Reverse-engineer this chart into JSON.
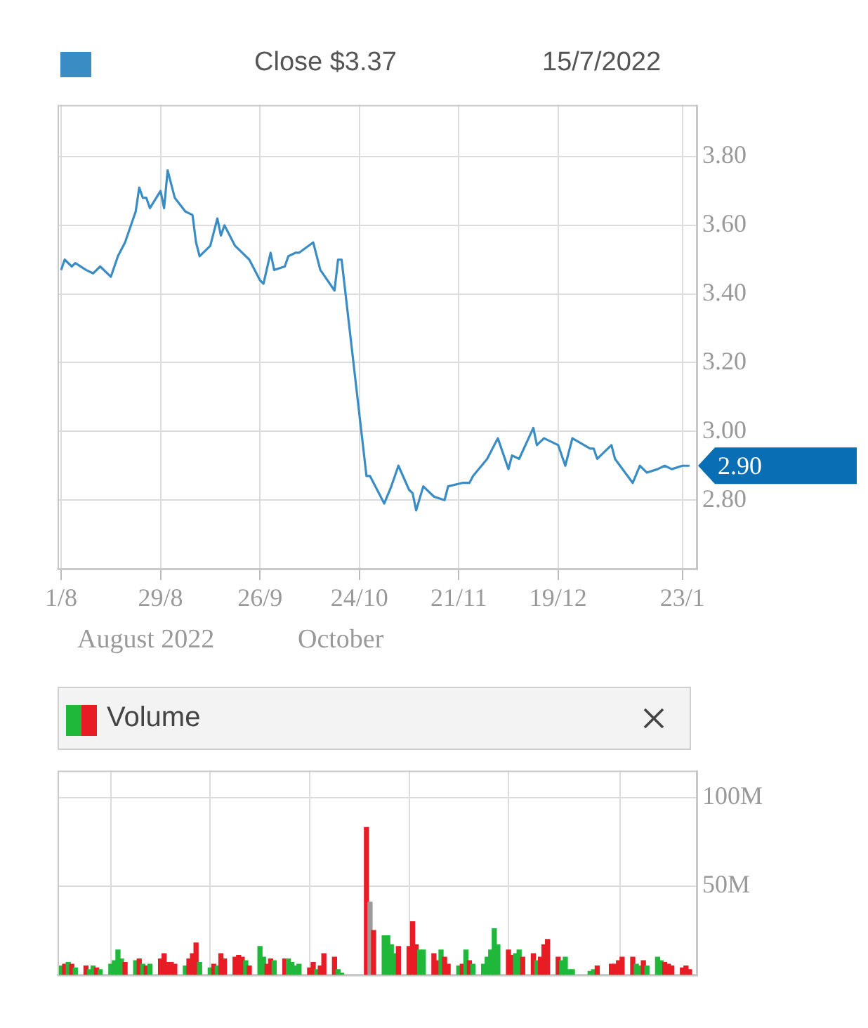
{
  "chart_data": [
    {
      "type": "line",
      "title": "Close $3.37",
      "subtitle": "15/7/2022",
      "color": "#3a8cc4",
      "marker": "none",
      "grid": true,
      "annotations": [
        "August 2022",
        "October"
      ],
      "xlim": [
        "2022-07-31",
        "2023-01-27"
      ],
      "xticks": [
        {
          "value": "2022-08-01",
          "label": "1/8"
        },
        {
          "value": "2022-08-29",
          "label": "29/8"
        },
        {
          "value": "2022-09-26",
          "label": "26/9"
        },
        {
          "value": "2022-10-24",
          "label": "24/10"
        },
        {
          "value": "2022-11-21",
          "label": "21/11"
        },
        {
          "value": "2022-12-19",
          "label": "19/12"
        },
        {
          "value": "2023-01-23",
          "label": "23/1"
        }
      ],
      "ylim": [
        2.6,
        3.95
      ],
      "yticks": [
        {
          "value": 2.8,
          "label": "2.80"
        },
        {
          "value": 3.0,
          "label": "3.00"
        },
        {
          "value": 3.2,
          "label": "3.20"
        },
        {
          "value": 3.4,
          "label": "3.40"
        },
        {
          "value": 3.6,
          "label": "3.60"
        },
        {
          "value": 3.8,
          "label": "3.80"
        }
      ],
      "x": [
        "2022-08-01",
        "2022-08-02",
        "2022-08-04",
        "2022-08-05",
        "2022-08-08",
        "2022-08-10",
        "2022-08-12",
        "2022-08-15",
        "2022-08-17",
        "2022-08-19",
        "2022-08-22",
        "2022-08-23",
        "2022-08-24",
        "2022-08-25",
        "2022-08-26",
        "2022-08-29",
        "2022-08-30",
        "2022-08-31",
        "2022-09-01",
        "2022-09-02",
        "2022-09-05",
        "2022-09-07",
        "2022-09-08",
        "2022-09-09",
        "2022-09-12",
        "2022-09-14",
        "2022-09-15",
        "2022-09-16",
        "2022-09-19",
        "2022-09-21",
        "2022-09-23",
        "2022-09-26",
        "2022-09-27",
        "2022-09-29",
        "2022-09-30",
        "2022-10-03",
        "2022-10-04",
        "2022-10-06",
        "2022-10-07",
        "2022-10-11",
        "2022-10-13",
        "2022-10-17",
        "2022-10-18",
        "2022-10-19",
        "2022-10-26",
        "2022-10-27",
        "2022-10-31",
        "2022-11-02",
        "2022-11-04",
        "2022-11-07",
        "2022-11-08",
        "2022-11-09",
        "2022-11-11",
        "2022-11-14",
        "2022-11-17",
        "2022-11-18",
        "2022-11-22",
        "2022-11-24",
        "2022-11-25",
        "2022-11-29",
        "2022-12-02",
        "2022-12-05",
        "2022-12-06",
        "2022-12-08",
        "2022-12-12",
        "2022-12-13",
        "2022-12-15",
        "2022-12-19",
        "2022-12-21",
        "2022-12-23",
        "2022-12-28",
        "2022-12-29",
        "2022-12-30",
        "2023-01-03",
        "2023-01-04",
        "2023-01-09",
        "2023-01-11",
        "2023-01-13",
        "2023-01-16",
        "2023-01-18",
        "2023-01-20",
        "2023-01-23",
        "2023-01-25"
      ],
      "values": [
        3.47,
        3.5,
        3.48,
        3.49,
        3.47,
        3.46,
        3.48,
        3.45,
        3.51,
        3.55,
        3.64,
        3.71,
        3.68,
        3.68,
        3.65,
        3.7,
        3.65,
        3.76,
        3.72,
        3.68,
        3.64,
        3.63,
        3.55,
        3.51,
        3.54,
        3.62,
        3.57,
        3.6,
        3.54,
        3.52,
        3.5,
        3.44,
        3.43,
        3.52,
        3.47,
        3.48,
        3.51,
        3.52,
        3.52,
        3.55,
        3.47,
        3.41,
        3.5,
        3.5,
        2.87,
        2.87,
        2.79,
        2.84,
        2.9,
        2.83,
        2.82,
        2.77,
        2.84,
        2.81,
        2.8,
        2.84,
        2.85,
        2.85,
        2.87,
        2.92,
        2.98,
        2.89,
        2.93,
        2.92,
        3.01,
        2.96,
        2.98,
        2.96,
        2.9,
        2.98,
        2.95,
        2.95,
        2.92,
        2.96,
        2.92,
        2.85,
        2.9,
        2.88,
        2.89,
        2.9,
        2.89,
        2.9,
        2.9
      ],
      "value_labels": [
        null,
        null,
        null,
        null,
        null,
        null,
        null,
        null,
        null,
        null,
        null,
        null,
        null,
        null,
        null,
        null,
        null,
        null,
        null,
        null,
        null,
        null,
        null,
        null,
        null,
        null,
        null,
        null,
        null,
        null,
        null,
        null,
        null,
        null,
        null,
        null,
        null,
        null,
        null,
        null,
        null,
        null,
        null,
        null,
        null,
        null,
        null,
        null,
        null,
        null,
        null,
        null,
        null,
        null,
        null,
        null,
        null,
        null,
        null,
        null,
        null,
        null,
        null,
        null,
        null,
        null,
        null,
        null,
        null,
        null,
        null,
        null,
        null,
        null,
        null,
        null,
        null,
        null,
        null,
        null,
        null,
        null,
        "2.90"
      ]
    },
    {
      "type": "bar",
      "title": "Volume",
      "grid": true,
      "tick_labels": "y",
      "xlim": [
        "2022-07-31",
        "2023-01-27"
      ],
      "xticks": [
        {
          "value": "2022-08-01",
          "label": null
        },
        {
          "value": "2022-08-29",
          "label": null
        },
        {
          "value": "2022-09-26",
          "label": null
        },
        {
          "value": "2022-10-24",
          "label": null
        },
        {
          "value": "2022-11-21",
          "label": null
        },
        {
          "value": "2022-12-19",
          "label": null
        },
        {
          "value": "2023-01-23",
          "label": null
        }
      ],
      "ylim": [
        0,
        115
      ],
      "yticks": [
        {
          "value": 50,
          "label": "50M"
        },
        {
          "value": 100,
          "label": "100M"
        }
      ],
      "x": [
        "2022-08-01",
        "2022-08-02",
        "2022-08-03",
        "2022-08-04",
        "2022-08-05",
        "2022-08-08",
        "2022-08-09",
        "2022-08-10",
        "2022-08-11",
        "2022-08-12",
        "2022-08-15",
        "2022-08-16",
        "2022-08-17",
        "2022-08-18",
        "2022-08-19",
        "2022-08-22",
        "2022-08-23",
        "2022-08-24",
        "2022-08-25",
        "2022-08-26",
        "2022-08-29",
        "2022-08-30",
        "2022-08-31",
        "2022-09-01",
        "2022-09-02",
        "2022-09-05",
        "2022-09-06",
        "2022-09-07",
        "2022-09-08",
        "2022-09-09",
        "2022-09-12",
        "2022-09-13",
        "2022-09-14",
        "2022-09-15",
        "2022-09-16",
        "2022-09-19",
        "2022-09-20",
        "2022-09-21",
        "2022-09-22",
        "2022-09-23",
        "2022-09-26",
        "2022-09-27",
        "2022-09-28",
        "2022-09-29",
        "2022-09-30",
        "2022-10-03",
        "2022-10-04",
        "2022-10-05",
        "2022-10-06",
        "2022-10-07",
        "2022-10-10",
        "2022-10-11",
        "2022-10-12",
        "2022-10-13",
        "2022-10-14",
        "2022-10-17",
        "2022-10-18",
        "2022-10-19",
        "2022-10-26",
        "2022-10-27",
        "2022-10-28",
        "2022-10-31",
        "2022-11-01",
        "2022-11-02",
        "2022-11-03",
        "2022-11-04",
        "2022-11-07",
        "2022-11-08",
        "2022-11-09",
        "2022-11-10",
        "2022-11-11",
        "2022-11-14",
        "2022-11-15",
        "2022-11-16",
        "2022-11-17",
        "2022-11-18",
        "2022-11-21",
        "2022-11-22",
        "2022-11-23",
        "2022-11-24",
        "2022-11-25",
        "2022-11-28",
        "2022-11-29",
        "2022-11-30",
        "2022-12-01",
        "2022-12-02",
        "2022-12-05",
        "2022-12-06",
        "2022-12-07",
        "2022-12-08",
        "2022-12-09",
        "2022-12-12",
        "2022-12-13",
        "2022-12-14",
        "2022-12-15",
        "2022-12-16",
        "2022-12-19",
        "2022-12-20",
        "2022-12-21",
        "2022-12-22",
        "2022-12-23",
        "2022-12-28",
        "2022-12-29",
        "2022-12-30",
        "2023-01-03",
        "2023-01-04",
        "2023-01-05",
        "2023-01-06",
        "2023-01-09",
        "2023-01-10",
        "2023-01-11",
        "2023-01-12",
        "2023-01-13",
        "2023-01-16",
        "2023-01-17",
        "2023-01-18",
        "2023-01-19",
        "2023-01-20",
        "2023-01-23",
        "2023-01-24",
        "2023-01-25"
      ],
      "values": [
        5,
        6,
        7,
        6,
        4,
        5,
        3,
        5,
        4,
        3,
        6,
        8,
        14,
        9,
        7,
        8,
        9,
        6,
        5,
        6,
        9,
        12,
        7,
        7,
        6,
        5,
        9,
        12,
        18,
        7,
        4,
        6,
        5,
        12,
        9,
        10,
        11,
        10,
        8,
        5,
        16,
        10,
        6,
        9,
        8,
        9,
        9,
        7,
        5,
        6,
        4,
        7,
        3,
        5,
        12,
        10,
        3,
        1,
        83,
        41,
        25,
        22,
        22,
        17,
        12,
        16,
        16,
        30,
        17,
        14,
        14,
        12,
        8,
        14,
        10,
        6,
        5,
        6,
        14,
        8,
        6,
        6,
        10,
        14,
        26,
        17,
        14,
        11,
        12,
        14,
        10,
        12,
        8,
        10,
        17,
        20,
        10,
        8,
        10,
        3,
        3,
        2,
        3,
        5,
        6,
        6,
        8,
        10,
        10,
        6,
        5,
        8,
        5,
        10,
        8,
        7,
        6,
        5,
        4,
        5,
        3
      ],
      "colors": [
        "#1fb83a",
        "#e81c24",
        "#1fb83a",
        "#e81c24",
        "#1fb83a",
        "#e81c24",
        "#1fb83a",
        "#1fb83a",
        "#e81c24",
        "#1fb83a",
        "#1fb83a",
        "#1fb83a",
        "#1fb83a",
        "#1fb83a",
        "#e81c24",
        "#1fb83a",
        "#e81c24",
        "#1fb83a",
        "#e81c24",
        "#1fb83a",
        "#e81c24",
        "#e81c24",
        "#e81c24",
        "#e81c24",
        "#e81c24",
        "#1fb83a",
        "#e81c24",
        "#e81c24",
        "#e81c24",
        "#1fb83a",
        "#1fb83a",
        "#e81c24",
        "#1fb83a",
        "#e81c24",
        "#e81c24",
        "#e81c24",
        "#e81c24",
        "#e81c24",
        "#1fb83a",
        "#e81c24",
        "#1fb83a",
        "#1fb83a",
        "#e81c24",
        "#e81c24",
        "#1fb83a",
        "#e81c24",
        "#1fb83a",
        "#1fb83a",
        "#1fb83a",
        "#1fb83a",
        "#e81c24",
        "#e81c24",
        "#1fb83a",
        "#e81c24",
        "#e81c24",
        "#e81c24",
        "#1fb83a",
        "#1fb83a",
        "#e81c24",
        "#9a9a9a",
        "#e81c24",
        "#1fb83a",
        "#1fb83a",
        "#1fb83a",
        "#1fb83a",
        "#e81c24",
        "#e81c24",
        "#e81c24",
        "#e81c24",
        "#1fb83a",
        "#1fb83a",
        "#e81c24",
        "#e81c24",
        "#1fb83a",
        "#e81c24",
        "#e81c24",
        "#1fb83a",
        "#e81c24",
        "#1fb83a",
        "#e81c24",
        "#1fb83a",
        "#1fb83a",
        "#1fb83a",
        "#1fb83a",
        "#1fb83a",
        "#1fb83a",
        "#e81c24",
        "#e81c24",
        "#1fb83a",
        "#1fb83a",
        "#e81c24",
        "#e81c24",
        "#1fb83a",
        "#e81c24",
        "#e81c24",
        "#e81c24",
        "#e81c24",
        "#1fb83a",
        "#1fb83a",
        "#1fb83a",
        "#1fb83a",
        "#1fb83a",
        "#1fb83a",
        "#e81c24",
        "#e81c24",
        "#e81c24",
        "#e81c24",
        "#e81c24",
        "#e81c24",
        "#1fb83a",
        "#1fb83a",
        "#e81c24",
        "#1fb83a",
        "#1fb83a",
        "#1fb83a",
        "#e81c24",
        "#e81c24",
        "#e81c24",
        "#e81c24",
        "#e81c24",
        "#e81c24"
      ]
    }
  ]
}
